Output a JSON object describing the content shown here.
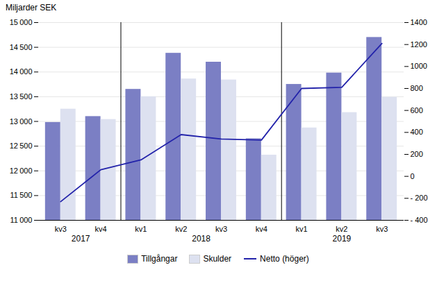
{
  "chart_data": {
    "type": "bar",
    "ylabel": "Miljarder SEK",
    "categories": [
      "kv3",
      "kv4",
      "kv1",
      "kv2",
      "kv3",
      "kv4",
      "kv1",
      "kv2",
      "kv3"
    ],
    "groups": [
      {
        "label": "2017",
        "categories": [
          "kv3",
          "kv4"
        ]
      },
      {
        "label": "2018",
        "categories": [
          "kv1",
          "kv2",
          "kv3",
          "kv4"
        ]
      },
      {
        "label": "2019",
        "categories": [
          "kv1",
          "kv2",
          "kv3"
        ]
      }
    ],
    "series": [
      {
        "name": "Tillgångar",
        "type": "bar",
        "color": "#7b7fc4",
        "values": [
          12980,
          13100,
          13650,
          14380,
          14200,
          12650,
          13750,
          13980,
          14700
        ]
      },
      {
        "name": "Skulder",
        "type": "bar",
        "color": "#dde1f0",
        "values": [
          13250,
          13040,
          13500,
          13860,
          13840,
          12320,
          12870,
          13180,
          13490
        ]
      },
      {
        "name": "Netto (höger)",
        "type": "line",
        "axis": "y2",
        "color": "#2222aa",
        "values": [
          -230,
          60,
          150,
          380,
          340,
          330,
          800,
          810,
          1210
        ]
      }
    ],
    "ylim": [
      11000,
      15000
    ],
    "yticks": [
      {
        "value": 11000,
        "label": "11 000"
      },
      {
        "value": 11500,
        "label": "11 500"
      },
      {
        "value": 12000,
        "label": "12 000"
      },
      {
        "value": 12500,
        "label": "12 500"
      },
      {
        "value": 13000,
        "label": "13 000"
      },
      {
        "value": 13500,
        "label": "13 500"
      },
      {
        "value": 14000,
        "label": "14 000"
      },
      {
        "value": 14500,
        "label": "14 500"
      },
      {
        "value": 15000,
        "label": "15 000"
      }
    ],
    "y2lim": [
      -400,
      1400
    ],
    "y2ticks": [
      {
        "value": -400,
        "label": "- 400"
      },
      {
        "value": -200,
        "label": "- 200"
      },
      0,
      200,
      400,
      600,
      800,
      1000,
      1200,
      1400
    ],
    "grid": true,
    "legend": "bottom"
  }
}
